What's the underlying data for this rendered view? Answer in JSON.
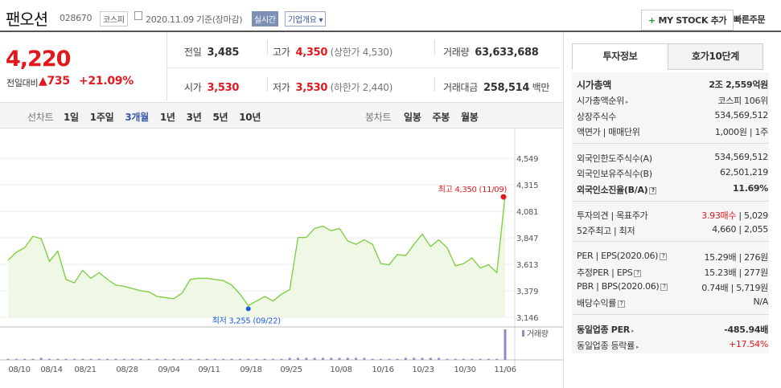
{
  "stock": {
    "name": "팬오션",
    "code": "028670",
    "market": "코스피",
    "date": "2020.11.09 기준(장마감)",
    "realtime": "실시간",
    "overview": "기업개요",
    "price": "4,220",
    "change_label": "전일대비",
    "change_arrow": "▲",
    "change": "735",
    "change_pct": "+21.09%"
  },
  "actions": {
    "my_stock": "MY STOCK 추가",
    "quick_order": "빠른주문"
  },
  "summary": {
    "prev_label": "전일",
    "prev": "3,485",
    "high_label": "고가",
    "high": "4,350",
    "upper_label": "(상한가",
    "upper": "4,530)",
    "volume_label": "거래량",
    "volume": "63,633,688",
    "open_label": "시가",
    "open": "3,530",
    "low_label": "저가",
    "low": "3,530",
    "lower_label": "(하한가",
    "lower": "2,440)",
    "amount_label": "거래대금",
    "amount": "258,514",
    "amount_unit": "백만"
  },
  "period_tabs": {
    "label": "선차트",
    "items": [
      "1일",
      "1주일",
      "3개월",
      "1년",
      "3년",
      "5년",
      "10년"
    ],
    "active": "3개월"
  },
  "candle_tabs": {
    "label": "봉차트",
    "items": [
      "일봉",
      "주봉",
      "월봉"
    ]
  },
  "right_tabs": [
    "투자정보",
    "호가10단계"
  ],
  "invest": {
    "mcap_label": "시가총액",
    "mcap": "2조 2,559억원",
    "rank_label": "시가총액순위",
    "rank": "코스피 106위",
    "shares_label": "상장주식수",
    "shares": "534,569,512",
    "par_label": "액면가",
    "par_sep": "매매단위",
    "par": "1,000원",
    "par_unit": "1주",
    "foreign_limit_label": "외국인한도주식수(A)",
    "foreign_limit": "534,569,512",
    "foreign_hold_label": "외국인보유주식수(B)",
    "foreign_hold": "62,501,219",
    "foreign_ratio_label": "외국인소진율(B/A)",
    "foreign_ratio": "11.69%",
    "opinion_label": "투자의견",
    "target_label": "목표주가",
    "opinion": "3.93매수",
    "target": "5,029",
    "w52_label": "52주최고",
    "w52_low_label": "최저",
    "w52_high": "4,660",
    "w52_low": "2,055",
    "per_label": "PER",
    "eps_label": "EPS(2020.06)",
    "per": "15.29배",
    "eps": "276원",
    "fper_label": "추정PER",
    "feps_label": "EPS",
    "fper": "15.23배",
    "feps": "277원",
    "pbr_label": "PBR",
    "bps_label": "BPS(2020.06)",
    "pbr": "0.74배",
    "bps": "5,719원",
    "div_label": "배당수익률",
    "div": "N/A",
    "ind_per_label": "동일업종 PER",
    "ind_per": "-485.94배",
    "ind_rate_label": "동일업종 등락률",
    "ind_rate": "+17.54%"
  },
  "chart_data": {
    "type": "line",
    "y_ticks": [
      "4,549",
      "4,315",
      "4,081",
      "3,847",
      "3,613",
      "3,379",
      "3,146"
    ],
    "y_tick_values": [
      4549,
      4315,
      4081,
      3847,
      3613,
      3379,
      3146
    ],
    "x_labels": [
      "08/10",
      "08/14",
      "08/21",
      "08/28",
      "09/04",
      "09/11",
      "09/18",
      "09/25",
      "10/08",
      "10/16",
      "10/23",
      "10/30",
      "11/06"
    ],
    "max_label": "최고 4,350 (11/09)",
    "min_label": "최저 3,255 (09/22)",
    "volume_label": "거래량",
    "values": [
      3650,
      3720,
      3760,
      3860,
      3840,
      3640,
      3730,
      3480,
      3450,
      3560,
      3490,
      3540,
      3480,
      3430,
      3420,
      3400,
      3380,
      3370,
      3330,
      3320,
      3310,
      3360,
      3480,
      3490,
      3490,
      3480,
      3470,
      3430,
      3350,
      3250,
      3290,
      3330,
      3290,
      3350,
      3390,
      3850,
      3850,
      3930,
      3950,
      3910,
      3930,
      3820,
      3790,
      3830,
      3790,
      3620,
      3610,
      3700,
      3690,
      3790,
      3880,
      3770,
      3830,
      3760,
      3600,
      3620,
      3670,
      3580,
      3610,
      3540,
      4220
    ],
    "volumes": [
      1,
      1,
      1,
      1,
      2,
      1,
      1,
      1,
      1,
      1,
      1,
      1,
      1,
      1,
      1,
      1,
      1,
      1,
      1,
      1,
      1,
      1,
      1,
      1,
      1,
      1,
      1,
      1,
      1,
      1,
      1,
      1,
      1,
      1,
      2,
      2,
      2,
      2,
      2,
      2,
      2,
      2,
      2,
      2,
      1,
      1,
      1,
      1,
      2,
      2,
      2,
      2,
      2,
      1,
      1,
      1,
      1,
      1,
      1,
      1,
      30
    ]
  }
}
